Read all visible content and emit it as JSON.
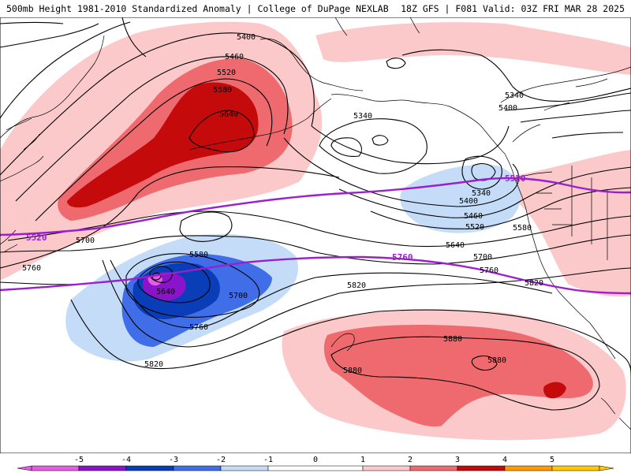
{
  "header": {
    "title": "500mb Height 1981-2010 Standardized Anomaly | College of DuPage NEXLAB",
    "run_info": "18Z GFS | F081 Valid: 03Z FRI MAR 28 2025"
  },
  "colors": {
    "highlight_contour": "#9b1fcf",
    "land_outline": "#000000",
    "height_contour": "#000000"
  },
  "contour_labels": [
    {
      "id": "l5400a",
      "text": "5400"
    },
    {
      "id": "l5460a",
      "text": "5460"
    },
    {
      "id": "l5520a",
      "text": "5520"
    },
    {
      "id": "l5580a",
      "text": "5580"
    },
    {
      "id": "l5640a",
      "text": "5640"
    },
    {
      "id": "l5340a",
      "text": "5340"
    },
    {
      "id": "l5340b",
      "text": "5340"
    },
    {
      "id": "l5400b",
      "text": "5400"
    },
    {
      "id": "l5340c",
      "text": "5340"
    },
    {
      "id": "l5400c",
      "text": "5400"
    },
    {
      "id": "l5460b",
      "text": "5460"
    },
    {
      "id": "l5520b",
      "text": "5520"
    },
    {
      "id": "l5580b",
      "text": "5580"
    },
    {
      "id": "l5640b",
      "text": "5640"
    },
    {
      "id": "l5700a",
      "text": "5700"
    },
    {
      "id": "l5760a",
      "text": "5760"
    },
    {
      "id": "l5820a",
      "text": "5820"
    },
    {
      "id": "l5700b",
      "text": "5700"
    },
    {
      "id": "l5760b",
      "text": "5760"
    },
    {
      "id": "l5580c",
      "text": "5580"
    },
    {
      "id": "l5640c",
      "text": "5640"
    },
    {
      "id": "l5700c",
      "text": "5700"
    },
    {
      "id": "l5760c",
      "text": "5760"
    },
    {
      "id": "l5820b",
      "text": "5820"
    },
    {
      "id": "l5820c",
      "text": "5820"
    },
    {
      "id": "l5880a",
      "text": "5880"
    },
    {
      "id": "l5880b",
      "text": "5880"
    },
    {
      "id": "l5880c",
      "text": "5880"
    }
  ],
  "highlight_labels": [
    {
      "id": "h5520a",
      "text": "5520"
    },
    {
      "id": "h5520b",
      "text": "5520"
    },
    {
      "id": "h5760a",
      "text": "5760"
    }
  ],
  "colorbar": {
    "ticks": [
      "-5",
      "-4",
      "-3",
      "-2",
      "-1",
      "0",
      "1",
      "2",
      "3",
      "4",
      "5"
    ],
    "min": -6,
    "max": 6,
    "bins": [
      {
        "from": -6,
        "to": -5,
        "color": "#e35ee0"
      },
      {
        "from": -5,
        "to": -4,
        "color": "#8a14c9"
      },
      {
        "from": -4,
        "to": -3,
        "color": "#0a3db8"
      },
      {
        "from": -3,
        "to": -2,
        "color": "#3f6ee8"
      },
      {
        "from": -2,
        "to": -1,
        "color": "#c4dcf7"
      },
      {
        "from": -1,
        "to": 1,
        "color": "#ffffff"
      },
      {
        "from": 1,
        "to": 2,
        "color": "#fbc9c9"
      },
      {
        "from": 2,
        "to": 3,
        "color": "#ef6a6e"
      },
      {
        "from": 3,
        "to": 4,
        "color": "#c40a0a"
      },
      {
        "from": 4,
        "to": 5,
        "color": "#ff9a00"
      },
      {
        "from": 5,
        "to": 6,
        "color": "#ffc800"
      }
    ]
  }
}
